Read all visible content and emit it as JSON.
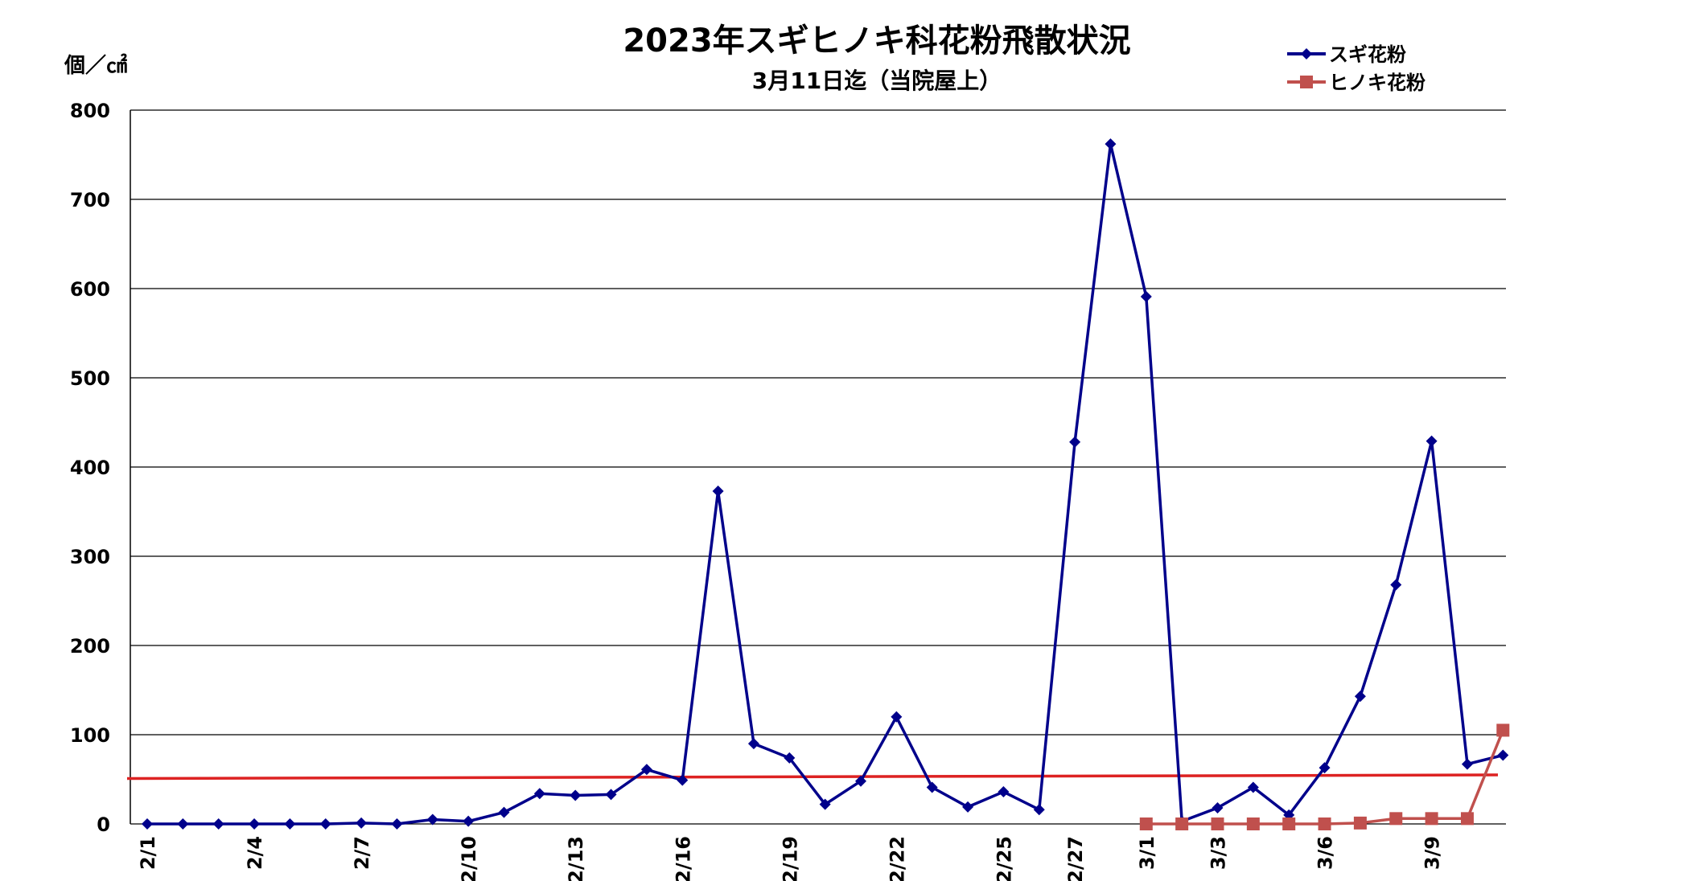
{
  "chart_data": {
    "type": "line",
    "title": "2023年スギヒノキ科花粉飛散状況",
    "subtitle": "3月11日迄（当院屋上）",
    "xlabel": "",
    "ylabel": "個／㎠",
    "ylim": [
      0,
      800
    ],
    "yticks": [
      0,
      100,
      200,
      300,
      400,
      500,
      600,
      700,
      800
    ],
    "grid": true,
    "legend_position": "top-right",
    "categories": [
      "2/1",
      "2/2",
      "2/3",
      "2/4",
      "2/5",
      "2/6",
      "2/7",
      "2/8",
      "2/9",
      "2/10",
      "2/11",
      "2/12",
      "2/13",
      "2/14",
      "2/15",
      "2/16",
      "2/17",
      "2/18",
      "2/19",
      "2/20",
      "2/21",
      "2/22",
      "2/23",
      "2/24",
      "2/25",
      "2/26",
      "2/27",
      "2/28",
      "3/1",
      "3/2",
      "3/3",
      "3/4",
      "3/5",
      "3/6",
      "3/7",
      "3/8",
      "3/9",
      "3/10",
      "3/11"
    ],
    "xtick_labels": [
      "2/1",
      "",
      "",
      "2/4",
      "",
      "",
      "2/7",
      "",
      "",
      "2/10",
      "",
      "",
      "2/13",
      "",
      "",
      "2/16",
      "",
      "",
      "2/19",
      "",
      "",
      "2/22",
      "",
      "",
      "2/25",
      "",
      "2/27",
      "",
      "3/1",
      "",
      "3/3",
      "",
      "",
      "3/6",
      "",
      "",
      "3/9",
      "",
      ""
    ],
    "series": [
      {
        "name": "スギ花粉",
        "color": "#00008B",
        "marker": "diamond",
        "values": [
          0,
          0,
          0,
          0,
          0,
          0,
          1,
          0,
          5,
          3,
          13,
          34,
          32,
          33,
          61,
          49,
          373,
          90,
          74,
          22,
          48,
          120,
          41,
          19,
          36,
          16,
          428,
          762,
          591,
          3,
          18,
          41,
          10,
          63,
          143,
          268,
          429,
          67,
          77
        ]
      },
      {
        "name": "ヒノキ花粉",
        "color": "#C0504D",
        "marker": "square",
        "values": [
          null,
          null,
          null,
          null,
          null,
          null,
          null,
          null,
          null,
          null,
          null,
          null,
          null,
          null,
          null,
          null,
          null,
          null,
          null,
          null,
          null,
          null,
          null,
          null,
          null,
          null,
          null,
          null,
          0,
          0,
          0,
          0,
          0,
          0,
          1,
          6,
          6,
          6,
          105
        ]
      }
    ],
    "reference_line": {
      "color": "#DD2222",
      "start_value": 50,
      "end_value": 54
    }
  }
}
